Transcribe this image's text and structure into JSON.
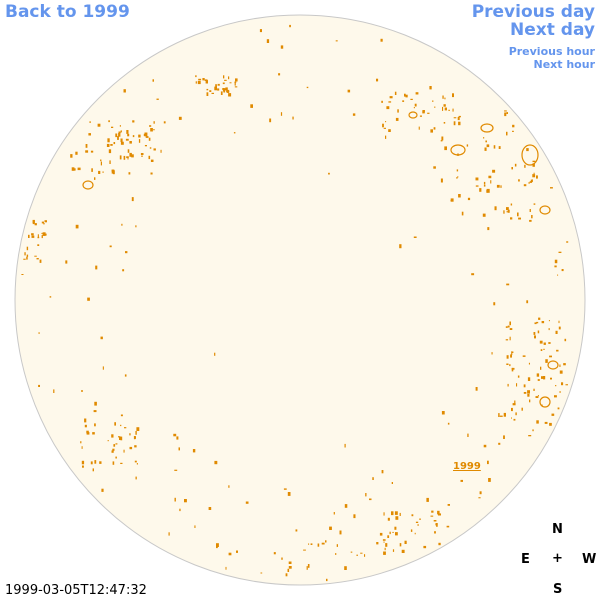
{
  "nav": {
    "back_label": "Back to 1999",
    "prev_day_label": "Previous day",
    "next_day_label": "Next day",
    "prev_hour_label": "Previous hour",
    "next_hour_label": "Next hour"
  },
  "map": {
    "year_link": "1999",
    "timestamp": "1999-03-05T12:47:32",
    "disk_fill": "#FEF9EB",
    "disk_stroke": "#C8C8C8",
    "contour_color": "#E08A00"
  },
  "compass": {
    "north": "N",
    "south": "S",
    "east": "E",
    "west": "W",
    "center": "+"
  }
}
